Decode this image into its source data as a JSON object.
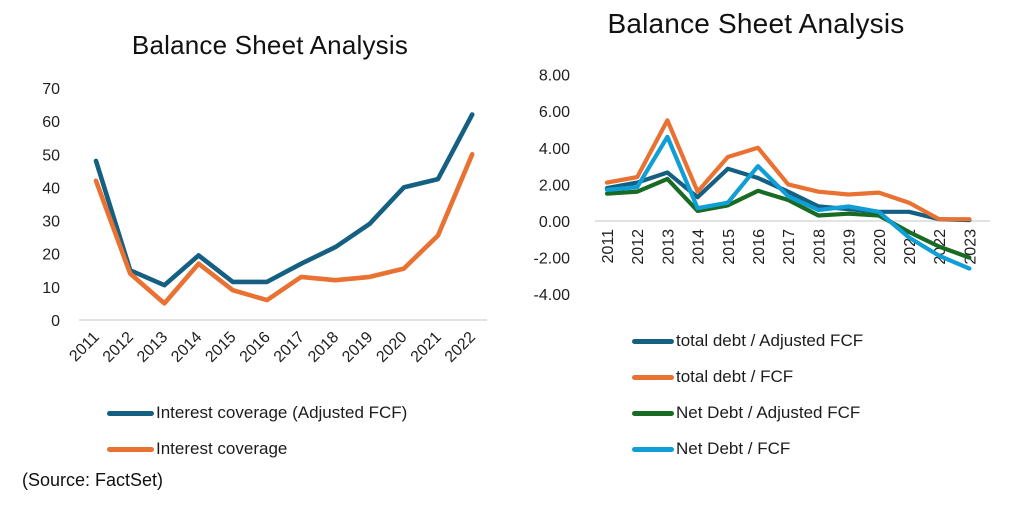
{
  "source_note": "(Source: FactSet)",
  "charts": [
    {
      "title": "Balance Sheet Analysis",
      "type": "line",
      "categories": [
        "2011",
        "2012",
        "2013",
        "2014",
        "2015",
        "2016",
        "2017",
        "2018",
        "2019",
        "2020",
        "2021",
        "2022"
      ],
      "yticks": [
        70,
        60,
        50,
        40,
        30,
        20,
        10,
        0
      ],
      "decimals": 0,
      "ylim": [
        0,
        70
      ],
      "x_label_rotation": -45,
      "grid": false,
      "legend_position": "bottom",
      "axis_line_color": "#D9D9D9",
      "series": [
        {
          "name": "Interest coverage (Adjusted FCF)",
          "color": "#156082",
          "values": [
            48,
            15,
            10.5,
            19.5,
            11.5,
            11.5,
            17,
            22,
            29,
            40,
            42.5,
            62
          ]
        },
        {
          "name": "Interest coverage",
          "color": "#E97132",
          "values": [
            42,
            14,
            5,
            17,
            9,
            6,
            13,
            12,
            13,
            15.5,
            25.5,
            50
          ]
        }
      ]
    },
    {
      "title": "Balance Sheet Analysis",
      "type": "line",
      "categories": [
        "2011",
        "2012",
        "2013",
        "2014",
        "2015",
        "2016",
        "2017",
        "2018",
        "2019",
        "2020",
        "2021",
        "2022",
        "2023"
      ],
      "yticks": [
        8,
        6,
        4,
        2,
        0,
        -2,
        -4
      ],
      "decimals": 2,
      "ylim": [
        -4,
        8
      ],
      "x_label_rotation": -90,
      "grid": false,
      "legend_position": "bottom",
      "axis_line_color": "#D9D9D9",
      "series": [
        {
          "name": "total debt / Adjusted FCF",
          "color": "#156082",
          "values": [
            1.8,
            2.1,
            2.65,
            1.3,
            2.85,
            2.35,
            1.6,
            0.8,
            0.65,
            0.5,
            0.5,
            0.1,
            0.05
          ]
        },
        {
          "name": "total debt / FCF",
          "color": "#E97132",
          "values": [
            2.1,
            2.4,
            5.5,
            1.6,
            3.5,
            4.0,
            2.0,
            1.6,
            1.45,
            1.55,
            1.0,
            0.1,
            0.1
          ]
        },
        {
          "name": "Net Debt / Adjusted FCF",
          "color": "#196B24",
          "values": [
            1.5,
            1.6,
            2.3,
            0.55,
            0.85,
            1.65,
            1.15,
            0.3,
            0.4,
            0.3,
            -0.6,
            -1.4,
            -2.0
          ]
        },
        {
          "name": "Net Debt / FCF",
          "color": "#0F9ED5",
          "values": [
            1.7,
            1.85,
            4.6,
            0.7,
            1.0,
            3.0,
            1.35,
            0.6,
            0.8,
            0.5,
            -0.9,
            -1.9,
            -2.6
          ]
        }
      ]
    }
  ]
}
